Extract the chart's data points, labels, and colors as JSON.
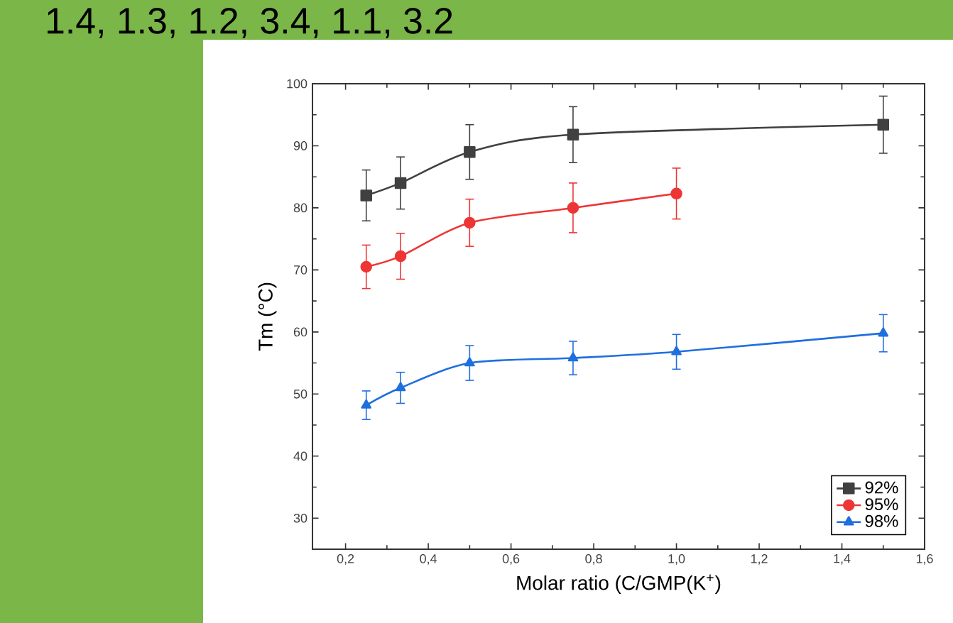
{
  "chart_data": {
    "type": "line",
    "annotations": [
      "1.4, 1.3, 1.2, 3.4, 1.1, 3.2"
    ],
    "xlabel": "Molar ratio (C/GMP(K$^{+}$)",
    "ylabel": "Tm (°C)",
    "xlim": [
      0.12,
      1.6
    ],
    "ylim": [
      25,
      100
    ],
    "xticks": [
      {
        "value": 0.2,
        "label": "0,2"
      },
      {
        "value": 0.4,
        "label": "0,4"
      },
      {
        "value": 0.6,
        "label": "0,6"
      },
      {
        "value": 0.8,
        "label": "0,8"
      },
      {
        "value": 1.0,
        "label": "1,0"
      },
      {
        "value": 1.2,
        "label": "1,2"
      },
      {
        "value": 1.4,
        "label": "1,4"
      },
      {
        "value": 1.6,
        "label": "1,6"
      }
    ],
    "yticks": [
      30,
      40,
      50,
      60,
      70,
      80,
      90,
      100
    ],
    "legend": "bottom right",
    "grid": false,
    "line_style": "solid",
    "series": [
      {
        "name": "92%",
        "color": "#404040",
        "marker": "square",
        "x": [
          0.25,
          0.333,
          0.5,
          0.75,
          1.5
        ],
        "values": [
          82,
          84,
          89,
          91.8,
          93.4
        ],
        "errors": [
          4.1,
          4.2,
          4.4,
          4.5,
          4.6
        ]
      },
      {
        "name": "95%",
        "color": "#ee3535",
        "marker": "circle",
        "x": [
          0.25,
          0.333,
          0.5,
          0.75,
          1.0
        ],
        "values": [
          70.5,
          72.2,
          77.6,
          80,
          82.3
        ],
        "errors": [
          3.5,
          3.7,
          3.8,
          4,
          4.1
        ]
      },
      {
        "name": "98%",
        "color": "#1f6fdf",
        "marker": "triangle",
        "x": [
          0.25,
          0.333,
          0.5,
          0.75,
          1.0,
          1.5
        ],
        "values": [
          48.2,
          51,
          55,
          55.8,
          56.8,
          59.8
        ],
        "errors": [
          2.3,
          2.5,
          2.8,
          2.7,
          2.8,
          3
        ]
      }
    ]
  }
}
